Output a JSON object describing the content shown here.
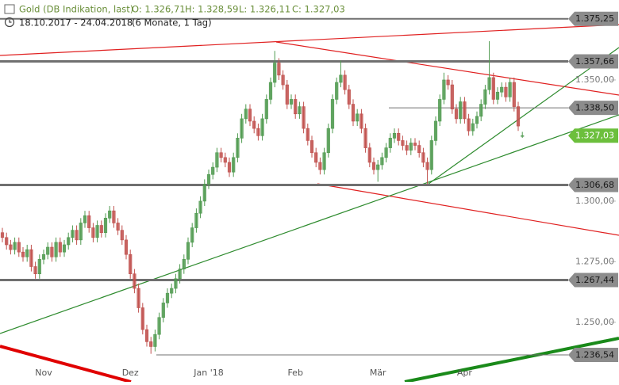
{
  "chart_data": {
    "type": "candlestick",
    "instrument": "Gold (DB Indikation, last)",
    "ohlc_labels": [
      "O: 1.326,71",
      "H: 1.328,59",
      "L: 1.326,11",
      "C: 1.327,03"
    ],
    "period": "18.10.2017 - 24.04.2018",
    "period_note": "(6 Monate, 1 Tag)",
    "up_color": "#4f9a4f",
    "down_color": "#c0504d",
    "ylim": [
      1231,
      1383
    ],
    "yticks": [
      {
        "value": 1250,
        "label": "1.250,00"
      },
      {
        "value": 1275,
        "label": "1.275,00"
      },
      {
        "value": 1300,
        "label": "1.300,00"
      },
      {
        "value": 1350,
        "label": "1.350,00"
      }
    ],
    "levels": [
      {
        "value": 1375.25,
        "label": "1.375,25",
        "color": "#8c8c8c"
      },
      {
        "value": 1357.66,
        "label": "1.357,66",
        "color": "#8c8c8c"
      },
      {
        "value": 1338.5,
        "label": "1.338,50",
        "color": "#8c8c8c"
      },
      {
        "value": 1327.03,
        "label": "1.327,03",
        "color": "#6cbf3c"
      },
      {
        "value": 1306.68,
        "label": "1.306,68",
        "color": "#8c8c8c"
      },
      {
        "value": 1267.44,
        "label": "1.267,44",
        "color": "#8c8c8c"
      },
      {
        "value": 1236.54,
        "label": "1.236,54",
        "color": "#8c8c8c"
      }
    ],
    "categories": [
      null,
      null,
      null,
      null,
      null,
      null,
      null,
      null,
      null,
      null,
      "Nov",
      null,
      null,
      null,
      null,
      null,
      null,
      null,
      null,
      null,
      null,
      null,
      null,
      null,
      null,
      null,
      null,
      null,
      null,
      null,
      null,
      "Dez",
      null,
      null,
      null,
      null,
      null,
      null,
      null,
      null,
      null,
      null,
      null,
      null,
      null,
      null,
      null,
      null,
      null,
      null,
      "Jan '18",
      null,
      null,
      null,
      null,
      null,
      null,
      null,
      null,
      null,
      null,
      null,
      null,
      null,
      null,
      null,
      null,
      null,
      null,
      null,
      null,
      "Feb",
      null,
      null,
      null,
      null,
      null,
      null,
      null,
      null,
      null,
      null,
      null,
      null,
      null,
      null,
      null,
      null,
      null,
      null,
      null,
      "Mär",
      null,
      null,
      null,
      null,
      null,
      null,
      null,
      null,
      null,
      null,
      null,
      null,
      null,
      null,
      null,
      null,
      null,
      null,
      null,
      null,
      "Apr",
      null,
      null,
      null,
      null,
      null,
      null,
      null,
      null,
      null,
      null,
      null,
      null,
      null,
      null
    ],
    "open": [
      1287,
      1285,
      1282,
      1280,
      1283,
      1279,
      1277,
      1280,
      1273,
      1270,
      1276,
      1278,
      1281,
      1277,
      1283,
      1279,
      1282,
      1285,
      1288,
      1284,
      1291,
      1294,
      1289,
      1285,
      1290,
      1287,
      1293,
      1296,
      1291,
      1288,
      1284,
      1278,
      1270,
      1264,
      1256,
      1247,
      1242,
      1240,
      1245,
      1252,
      1258,
      1262,
      1264,
      1268,
      1272,
      1276,
      1283,
      1289,
      1295,
      1300,
      1307,
      1311,
      1314,
      1320,
      1318,
      1316,
      1312,
      1318,
      1326,
      1334,
      1338,
      1333,
      1330,
      1327,
      1334,
      1342,
      1349,
      1357,
      1352,
      1348,
      1340,
      1342,
      1336,
      1339,
      1330,
      1325,
      1320,
      1316,
      1313,
      1320,
      1330,
      1342,
      1349,
      1352,
      1346,
      1340,
      1333,
      1336,
      1330,
      1322,
      1316,
      1313,
      1315,
      1318,
      1322,
      1326,
      1328,
      1325,
      1323,
      1321,
      1324,
      1323,
      1320,
      1316,
      1313,
      1325,
      1333,
      1342,
      1350,
      1348,
      1338,
      1334,
      1341,
      1334,
      1329,
      1332,
      1335,
      1340,
      1346,
      1351,
      1342,
      1345,
      1347,
      1343,
      1349,
      1339,
      1326.71
    ],
    "high": [
      1289,
      1287,
      1284,
      1285,
      1285,
      1281,
      1282,
      1282,
      1275,
      1278,
      1280,
      1283,
      1283,
      1285,
      1285,
      1284,
      1287,
      1290,
      1290,
      1293,
      1296,
      1296,
      1291,
      1292,
      1292,
      1295,
      1298,
      1298,
      1293,
      1290,
      1286,
      1280,
      1272,
      1266,
      1258,
      1249,
      1244,
      1247,
      1254,
      1260,
      1264,
      1266,
      1270,
      1274,
      1278,
      1285,
      1291,
      1297,
      1302,
      1309,
      1313,
      1316,
      1322,
      1322,
      1320,
      1318,
      1320,
      1328,
      1336,
      1340,
      1340,
      1335,
      1332,
      1336,
      1344,
      1351,
      1362,
      1359,
      1354,
      1350,
      1344,
      1344,
      1341,
      1341,
      1332,
      1327,
      1322,
      1318,
      1322,
      1332,
      1344,
      1351,
      1358,
      1354,
      1348,
      1342,
      1338,
      1338,
      1332,
      1324,
      1318,
      1317,
      1320,
      1324,
      1328,
      1330,
      1330,
      1327,
      1325,
      1326,
      1326,
      1325,
      1322,
      1318,
      1327,
      1335,
      1344,
      1353,
      1352,
      1350,
      1340,
      1343,
      1343,
      1336,
      1334,
      1337,
      1342,
      1348,
      1366,
      1353,
      1347,
      1349,
      1349,
      1351,
      1351,
      1341,
      1328.59
    ],
    "low": [
      1283,
      1280,
      1278,
      1278,
      1277,
      1275,
      1275,
      1271,
      1268,
      1268,
      1274,
      1276,
      1275,
      1275,
      1277,
      1277,
      1280,
      1283,
      1282,
      1282,
      1289,
      1287,
      1283,
      1283,
      1285,
      1285,
      1291,
      1289,
      1286,
      1282,
      1276,
      1268,
      1262,
      1254,
      1245,
      1240,
      1237,
      1238,
      1243,
      1250,
      1256,
      1260,
      1262,
      1266,
      1270,
      1274,
      1281,
      1287,
      1293,
      1298,
      1305,
      1309,
      1312,
      1316,
      1314,
      1310,
      1310,
      1316,
      1324,
      1332,
      1331,
      1328,
      1325,
      1325,
      1332,
      1340,
      1347,
      1350,
      1346,
      1338,
      1338,
      1334,
      1334,
      1328,
      1323,
      1318,
      1314,
      1311,
      1311,
      1318,
      1328,
      1340,
      1347,
      1344,
      1338,
      1331,
      1331,
      1328,
      1320,
      1314,
      1311,
      1308,
      1313,
      1316,
      1320,
      1324,
      1323,
      1321,
      1319,
      1319,
      1321,
      1318,
      1314,
      1307,
      1311,
      1323,
      1331,
      1340,
      1346,
      1336,
      1332,
      1332,
      1332,
      1327,
      1327,
      1330,
      1333,
      1338,
      1344,
      1340,
      1340,
      1343,
      1341,
      1341,
      1337,
      1329,
      1326.11
    ],
    "close": [
      1285,
      1282,
      1280,
      1283,
      1279,
      1277,
      1280,
      1273,
      1270,
      1276,
      1278,
      1281,
      1277,
      1283,
      1279,
      1282,
      1285,
      1288,
      1284,
      1291,
      1294,
      1289,
      1285,
      1290,
      1287,
      1293,
      1296,
      1291,
      1288,
      1284,
      1278,
      1270,
      1264,
      1256,
      1247,
      1242,
      1240,
      1245,
      1252,
      1258,
      1262,
      1264,
      1268,
      1272,
      1276,
      1283,
      1289,
      1295,
      1300,
      1307,
      1311,
      1314,
      1320,
      1318,
      1316,
      1312,
      1318,
      1326,
      1334,
      1338,
      1333,
      1330,
      1327,
      1334,
      1342,
      1349,
      1357,
      1352,
      1348,
      1340,
      1342,
      1336,
      1339,
      1330,
      1325,
      1320,
      1316,
      1313,
      1320,
      1330,
      1342,
      1349,
      1352,
      1346,
      1340,
      1333,
      1336,
      1330,
      1322,
      1316,
      1313,
      1315,
      1318,
      1322,
      1326,
      1328,
      1325,
      1323,
      1321,
      1324,
      1323,
      1320,
      1316,
      1313,
      1325,
      1333,
      1342,
      1350,
      1348,
      1338,
      1334,
      1341,
      1334,
      1329,
      1332,
      1335,
      1340,
      1346,
      1351,
      1342,
      1345,
      1347,
      1343,
      1349,
      1339,
      1331,
      1327.03
    ]
  }
}
